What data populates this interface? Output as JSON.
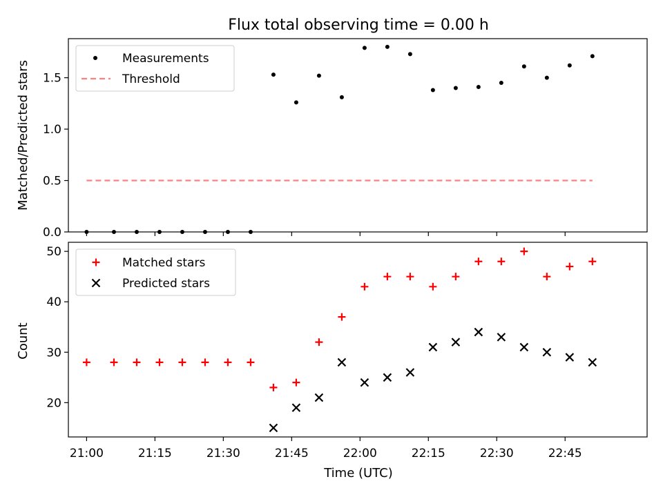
{
  "title": "Flux total observing time = 0.00 h",
  "chart_data": [
    {
      "type": "scatter",
      "panel": "top",
      "title": "Flux total observing time = 0.00 h",
      "xlabel": "",
      "ylabel": "Matched/Predicted stars",
      "ylim": [
        0.0,
        1.88
      ],
      "yticks": [
        "0.0",
        "0.5",
        "1.0",
        "1.5"
      ],
      "grid": false,
      "legend_position": "upper left",
      "series": [
        {
          "name": "Measurements",
          "marker": "dot",
          "color": "#000000",
          "x": [
            "21:00",
            "21:06",
            "21:11",
            "21:16",
            "21:21",
            "21:26",
            "21:31",
            "21:36",
            "21:41",
            "21:46",
            "21:51",
            "21:56",
            "22:01",
            "22:06",
            "22:11",
            "22:16",
            "22:21",
            "22:26",
            "22:31",
            "22:36",
            "22:41",
            "22:46",
            "22:51"
          ],
          "y": [
            0.0,
            0.0,
            0.0,
            0.0,
            0.0,
            0.0,
            0.0,
            0.0,
            1.53,
            1.26,
            1.52,
            1.31,
            1.79,
            1.8,
            1.73,
            1.38,
            1.4,
            1.41,
            1.45,
            1.61,
            1.5,
            1.62,
            1.71
          ]
        },
        {
          "name": "Threshold",
          "marker": "dashed-line",
          "color": "#ff7f7f",
          "x": [
            "21:00",
            "22:51"
          ],
          "y": [
            0.5,
            0.5
          ]
        }
      ]
    },
    {
      "type": "scatter",
      "panel": "bottom",
      "xlabel": "Time (UTC)",
      "ylabel": "Count",
      "ylim": [
        13.2,
        51.8
      ],
      "yticks": [
        "20",
        "30",
        "40",
        "50"
      ],
      "xticks": [
        "21:00",
        "21:15",
        "21:30",
        "21:45",
        "22:00",
        "22:15",
        "22:30",
        "22:45"
      ],
      "xlim": [
        "20:56",
        "23:03"
      ],
      "grid": false,
      "legend_position": "upper left",
      "series": [
        {
          "name": "Matched stars",
          "marker": "plus",
          "color": "#ff0000",
          "x": [
            "21:00",
            "21:06",
            "21:11",
            "21:16",
            "21:21",
            "21:26",
            "21:31",
            "21:36",
            "21:41",
            "21:46",
            "21:51",
            "21:56",
            "22:01",
            "22:06",
            "22:11",
            "22:16",
            "22:21",
            "22:26",
            "22:31",
            "22:36",
            "22:41",
            "22:46",
            "22:51"
          ],
          "y": [
            28,
            28,
            28,
            28,
            28,
            28,
            28,
            28,
            23,
            24,
            32,
            37,
            43,
            45,
            45,
            43,
            45,
            48,
            48,
            50,
            45,
            47,
            48
          ]
        },
        {
          "name": "Predicted stars",
          "marker": "x",
          "color": "#000000",
          "x": [
            "21:41",
            "21:46",
            "21:51",
            "21:56",
            "22:01",
            "22:06",
            "22:11",
            "22:16",
            "22:21",
            "22:26",
            "22:31",
            "22:36",
            "22:41",
            "22:46",
            "22:51"
          ],
          "y": [
            15,
            19,
            21,
            28,
            24,
            25,
            26,
            31,
            32,
            34,
            33,
            31,
            30,
            29,
            28
          ]
        }
      ]
    }
  ]
}
